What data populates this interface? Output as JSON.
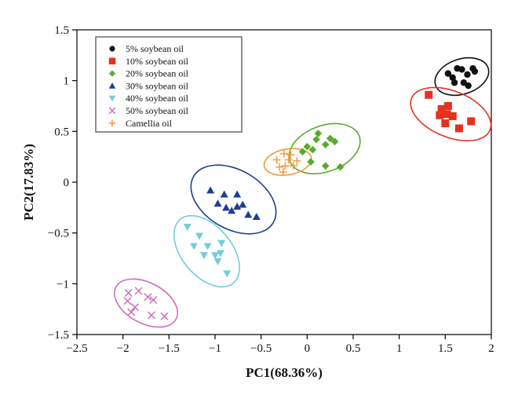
{
  "chart_data": {
    "type": "scatter",
    "xlabel": "PC1(68.36%)",
    "ylabel": "PC2(17.83%)",
    "xlim": [
      -2.5,
      2
    ],
    "ylim": [
      -1.5,
      1.5
    ],
    "xticks": [
      -2.5,
      -2,
      -1.5,
      -1,
      -0.5,
      0,
      0.5,
      1,
      1.5,
      2
    ],
    "xtick_labels": [
      "−2.5",
      "−2",
      "−1.5",
      "−1",
      "−0.5",
      "0",
      "0.5",
      "1",
      "1.5",
      "2"
    ],
    "yticks": [
      -1.5,
      -1,
      -0.5,
      0,
      0.5,
      1,
      1.5
    ],
    "ytick_labels": [
      "−1.5",
      "−1",
      "−0.5",
      "0",
      "0.5",
      "1",
      "1.5"
    ],
    "legend_position": "top-left",
    "grid": false,
    "series": [
      {
        "name": "5% soybean oil",
        "marker": "circle",
        "color": "#111111",
        "points": [
          [
            1.53,
            1.07
          ],
          [
            1.58,
            1.03
          ],
          [
            1.63,
            1.12
          ],
          [
            1.68,
            1.11
          ],
          [
            1.74,
            1.06
          ],
          [
            1.6,
            0.98
          ],
          [
            1.7,
            0.98
          ],
          [
            1.8,
            1.12
          ],
          [
            1.82,
            1.09
          ],
          [
            1.75,
            0.95
          ]
        ],
        "ellipse": {
          "cx": 1.68,
          "cy": 1.04,
          "rx": 0.3,
          "ry": 0.19,
          "angle": 18
        }
      },
      {
        "name": "10% soybean oil",
        "marker": "square",
        "color": "#e5321f",
        "points": [
          [
            1.32,
            0.86
          ],
          [
            1.46,
            0.72
          ],
          [
            1.53,
            0.75
          ],
          [
            1.44,
            0.66
          ],
          [
            1.52,
            0.67
          ],
          [
            1.58,
            0.65
          ],
          [
            1.5,
            0.58
          ],
          [
            1.65,
            0.53
          ],
          [
            1.78,
            0.6
          ]
        ],
        "ellipse": {
          "cx": 1.56,
          "cy": 0.67,
          "rx": 0.46,
          "ry": 0.25,
          "angle": -22
        }
      },
      {
        "name": "20% soybean oil",
        "marker": "diamond",
        "color": "#5aaa2c",
        "points": [
          [
            0.1,
            0.42
          ],
          [
            0.12,
            0.48
          ],
          [
            0.25,
            0.43
          ],
          [
            -0.05,
            0.3
          ],
          [
            0.0,
            0.35
          ],
          [
            0.06,
            0.32
          ],
          [
            0.2,
            0.37
          ],
          [
            0.3,
            0.4
          ],
          [
            0.04,
            0.2
          ],
          [
            0.2,
            0.16
          ],
          [
            0.36,
            0.15
          ]
        ],
        "ellipse": {
          "cx": 0.19,
          "cy": 0.33,
          "rx": 0.4,
          "ry": 0.25,
          "angle": 20
        }
      },
      {
        "name": "30% soybean oil",
        "marker": "triangle-up",
        "color": "#1f3e96",
        "points": [
          [
            -1.05,
            -0.08
          ],
          [
            -0.9,
            -0.12
          ],
          [
            -0.76,
            -0.12
          ],
          [
            -0.97,
            -0.21
          ],
          [
            -0.88,
            -0.25
          ],
          [
            -0.82,
            -0.28
          ],
          [
            -0.76,
            -0.24
          ],
          [
            -0.7,
            -0.22
          ],
          [
            -0.64,
            -0.32
          ],
          [
            -0.55,
            -0.34
          ]
        ],
        "ellipse": {
          "cx": -0.8,
          "cy": -0.17,
          "rx": 0.5,
          "ry": 0.32,
          "angle": -30
        }
      },
      {
        "name": "40% soybean oil",
        "marker": "triangle-down",
        "color": "#72cde0",
        "points": [
          [
            -1.3,
            -0.44
          ],
          [
            -1.17,
            -0.53
          ],
          [
            -1.23,
            -0.63
          ],
          [
            -1.08,
            -0.63
          ],
          [
            -0.93,
            -0.6
          ],
          [
            -1.12,
            -0.72
          ],
          [
            -1.0,
            -0.72
          ],
          [
            -0.94,
            -0.7
          ],
          [
            -0.97,
            -0.78
          ],
          [
            -0.87,
            -0.9
          ]
        ],
        "ellipse": {
          "cx": -1.09,
          "cy": -0.68,
          "rx": 0.45,
          "ry": 0.27,
          "angle": -50
        }
      },
      {
        "name": "50% soybean oil",
        "marker": "x",
        "color": "#cf68b8",
        "points": [
          [
            -1.94,
            -1.09
          ],
          [
            -1.83,
            -1.07
          ],
          [
            -1.95,
            -1.17
          ],
          [
            -1.73,
            -1.13
          ],
          [
            -1.67,
            -1.16
          ],
          [
            -1.87,
            -1.23
          ],
          [
            -1.91,
            -1.28
          ],
          [
            -1.69,
            -1.31
          ],
          [
            -1.55,
            -1.32
          ]
        ],
        "ellipse": {
          "cx": -1.75,
          "cy": -1.19,
          "rx": 0.37,
          "ry": 0.22,
          "angle": -28
        }
      },
      {
        "name": "Camellia oil",
        "marker": "plus",
        "color": "#f29a37",
        "points": [
          [
            -0.25,
            0.28
          ],
          [
            -0.18,
            0.27
          ],
          [
            -0.33,
            0.22
          ],
          [
            -0.2,
            0.22
          ],
          [
            -0.11,
            0.21
          ],
          [
            -0.3,
            0.15
          ],
          [
            -0.24,
            0.16
          ],
          [
            -0.15,
            0.16
          ],
          [
            -0.26,
            0.1
          ]
        ],
        "ellipse": {
          "cx": -0.21,
          "cy": 0.2,
          "rx": 0.26,
          "ry": 0.14,
          "angle": 10
        }
      }
    ]
  }
}
